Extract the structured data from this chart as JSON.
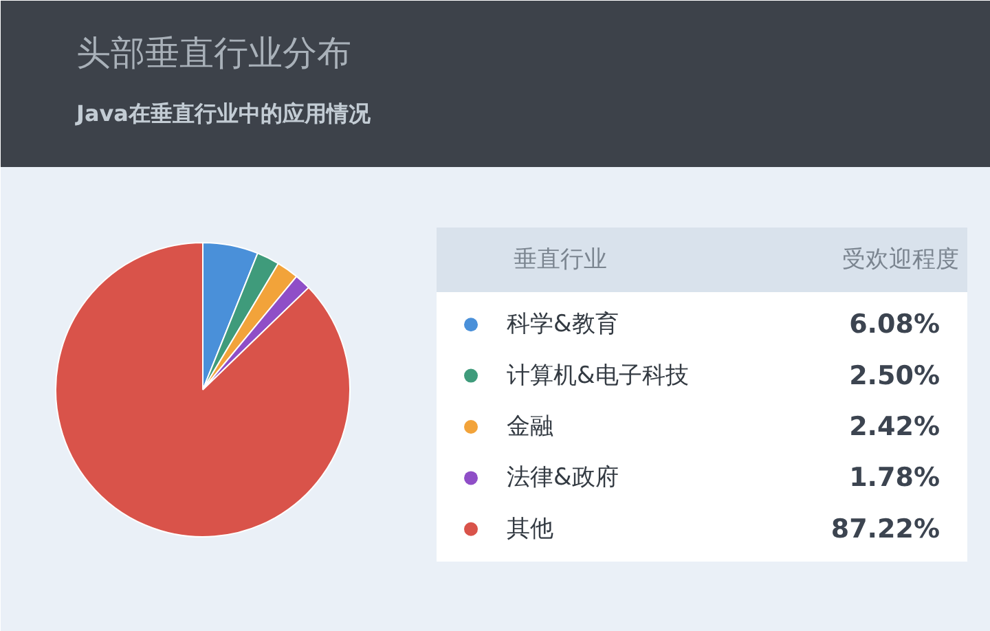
{
  "chart_data": {
    "type": "pie",
    "title": "头部垂直行业分布",
    "subtitle": "Java在垂直行业中的应用情况",
    "legend_title": "垂直行业",
    "ylabel": "受欢迎程度",
    "categories": [
      "科学&教育",
      "计算机&电子科技",
      "金融",
      "法律&政府",
      "其他"
    ],
    "values": [
      6.08,
      2.5,
      2.42,
      1.78,
      87.22
    ],
    "value_labels": [
      "6.08%",
      "2.50%",
      "2.42%",
      "1.78%",
      "87.22%"
    ],
    "colors": [
      "#4a90d9",
      "#3f9b7b",
      "#f2a33a",
      "#8f4ec7",
      "#d9534a"
    ],
    "legend": "right"
  }
}
